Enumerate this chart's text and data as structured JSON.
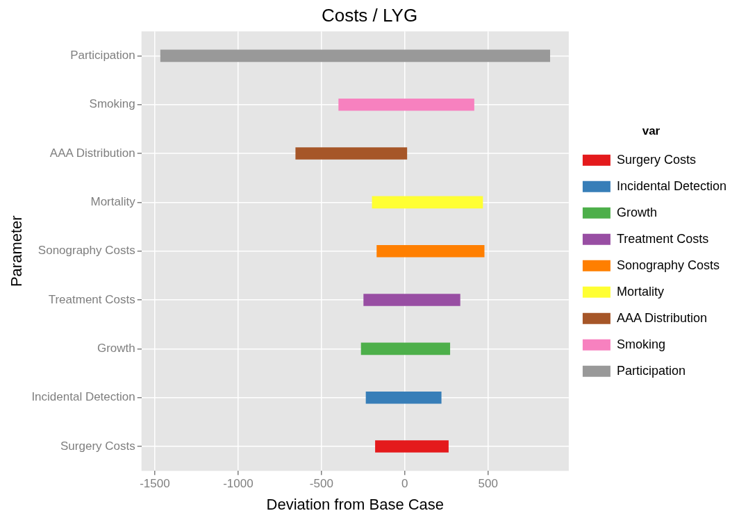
{
  "chart_data": {
    "type": "bar",
    "orientation": "horizontal",
    "title": "Costs / LYG",
    "xlabel": "Deviation from Base Case",
    "ylabel": "Parameter",
    "legend_title": "var",
    "legend": "right",
    "grid": true,
    "categories": [
      "Participation",
      "Smoking",
      "AAA Distribution",
      "Mortality",
      "Sonography Costs",
      "Treatment Costs",
      "Growth",
      "Incidental Detection",
      "Surgery Costs"
    ],
    "xlim": [
      -1580,
      984
    ],
    "xticks": [
      -1500,
      -1000,
      -500,
      0,
      500
    ],
    "series": [
      {
        "name": "Surgery Costs",
        "color": "#e41a1c",
        "base": [
          null,
          null,
          null,
          null,
          null,
          null,
          null,
          null,
          -178
        ],
        "values": [
          null,
          null,
          null,
          null,
          null,
          null,
          null,
          null,
          441
        ]
      },
      {
        "name": "Incidental Detection",
        "color": "#377eb8",
        "base": [
          null,
          null,
          null,
          null,
          null,
          null,
          null,
          -234,
          null
        ],
        "values": [
          null,
          null,
          null,
          null,
          null,
          null,
          null,
          454,
          null
        ]
      },
      {
        "name": "Growth",
        "color": "#4daf4a",
        "base": [
          null,
          null,
          null,
          null,
          null,
          null,
          -263,
          null,
          null
        ],
        "values": [
          null,
          null,
          null,
          null,
          null,
          null,
          535,
          null,
          null
        ]
      },
      {
        "name": "Treatment Costs",
        "color": "#984ea3",
        "base": [
          null,
          null,
          null,
          null,
          null,
          -248,
          null,
          null,
          null
        ],
        "values": [
          null,
          null,
          null,
          null,
          null,
          581,
          null,
          null,
          null
        ]
      },
      {
        "name": "Sonography Costs",
        "color": "#ff7f00",
        "base": [
          null,
          null,
          null,
          null,
          -169,
          null,
          null,
          null,
          null
        ],
        "values": [
          null,
          null,
          null,
          null,
          647,
          null,
          null,
          null,
          null
        ]
      },
      {
        "name": "Mortality",
        "color": "#ffff33",
        "base": [
          null,
          null,
          null,
          -197,
          null,
          null,
          null,
          null,
          null
        ],
        "values": [
          null,
          null,
          null,
          666,
          null,
          null,
          null,
          null,
          null
        ]
      },
      {
        "name": "AAA Distribution",
        "color": "#a65628",
        "base": [
          null,
          null,
          -656,
          null,
          null,
          null,
          null,
          null,
          null
        ],
        "values": [
          null,
          null,
          670,
          null,
          null,
          null,
          null,
          null,
          null
        ]
      },
      {
        "name": "Smoking",
        "color": "#f781bf",
        "base": [
          null,
          -398,
          null,
          null,
          null,
          null,
          null,
          null,
          null
        ],
        "values": [
          null,
          815,
          null,
          null,
          null,
          null,
          null,
          null,
          null
        ]
      },
      {
        "name": "Participation",
        "color": "#999999",
        "base": [
          -1467,
          null,
          null,
          null,
          null,
          null,
          null,
          null,
          null
        ],
        "values": [
          2339,
          null,
          null,
          null,
          null,
          null,
          null,
          null,
          null
        ]
      }
    ]
  }
}
